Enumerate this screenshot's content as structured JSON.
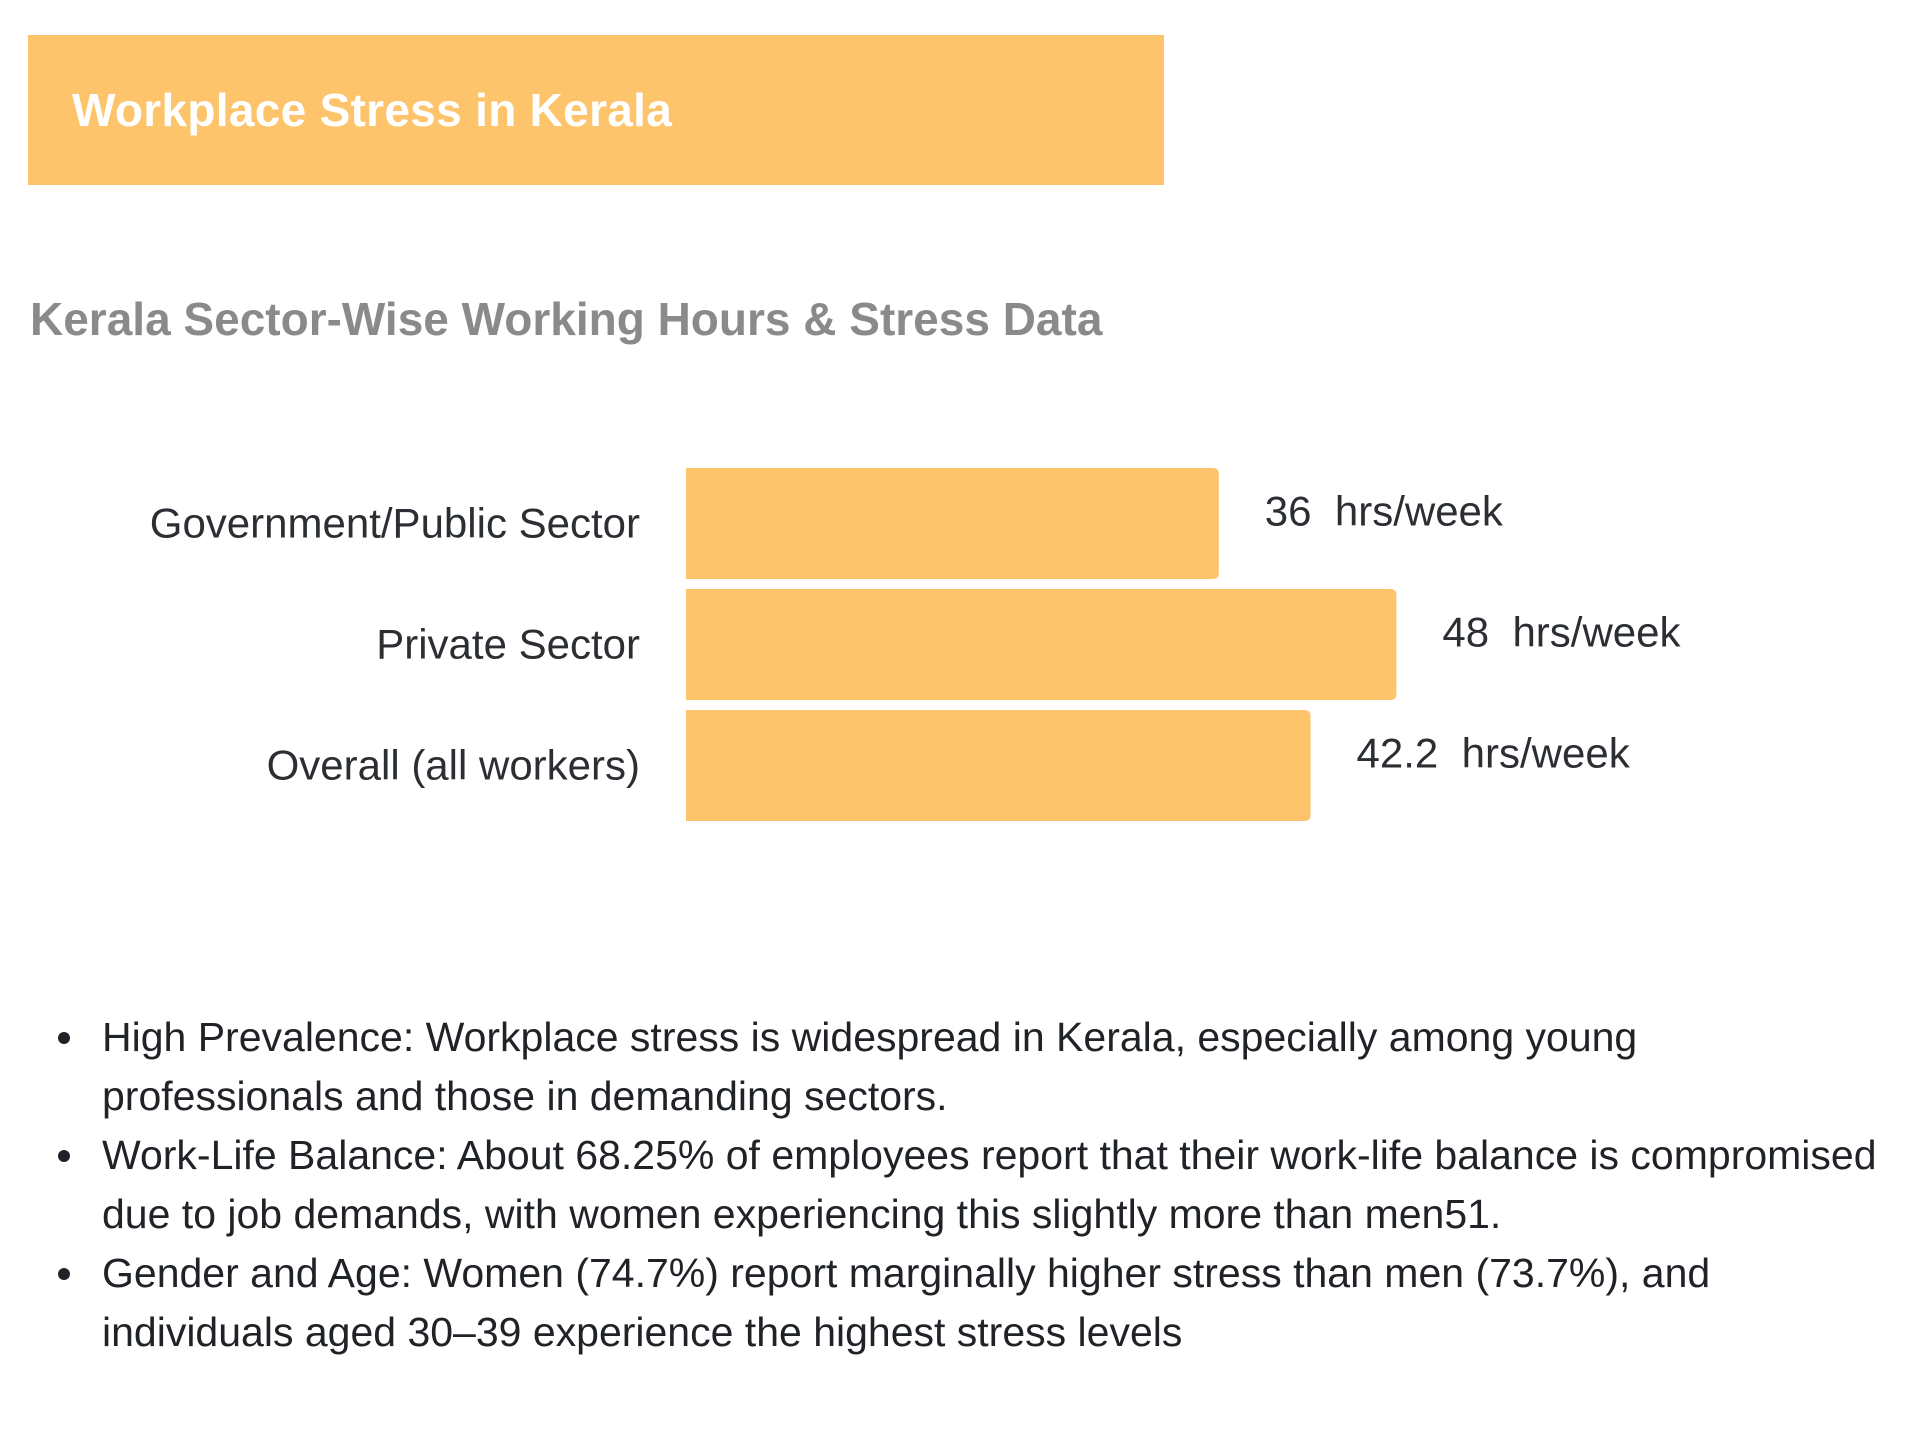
{
  "header": {
    "title": "Workplace Stress in Kerala",
    "banner_color": "#fdc46c"
  },
  "subtitle": "Kerala Sector-Wise Working Hours & Stress Data",
  "chart_data": {
    "type": "bar",
    "orientation": "horizontal",
    "categories": [
      "Government/Public Sector",
      "Private Sector",
      "Overall (all workers)"
    ],
    "values": [
      36,
      48,
      42.2
    ],
    "value_labels": [
      "36  hrs/week",
      "48  hrs/week",
      "42.2  hrs/week"
    ],
    "unit": "hrs/week",
    "bar_color": "#fdc46c",
    "title": "",
    "xlabel": "",
    "ylabel": "",
    "grid": false
  },
  "bullets": [
    "High Prevalence: Workplace stress is widespread in Kerala, especially among young professionals and those in demanding sectors.",
    "Work-Life Balance: About 68.25% of employees report that their work-life balance is compromised due to job demands, with women experiencing this slightly more than men51.",
    "Gender and Age: Women (74.7%) report marginally higher stress than men (73.7%), and individuals aged 30–39 experience the highest stress levels"
  ]
}
